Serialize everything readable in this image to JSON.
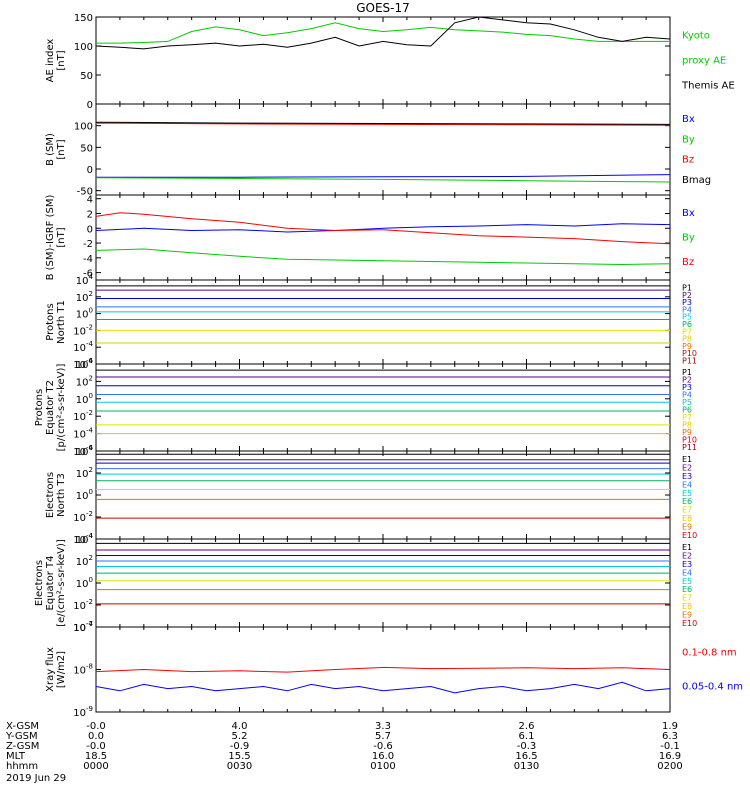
{
  "chart_data": {
    "type": "line",
    "title": "GOES-17",
    "date_label": "2019 Jun 29",
    "x_range_minutes": [
      0,
      120
    ],
    "x_tick_minutes": [
      0,
      30,
      60,
      90,
      120
    ],
    "ephemeris": [
      {
        "label": "X-GSM",
        "values": [
          "-0.0",
          "4.0",
          "3.3",
          "2.6",
          "1.9"
        ]
      },
      {
        "label": "Y-GSM",
        "values": [
          "0.0",
          "5.2",
          "5.7",
          "6.1",
          "6.3"
        ]
      },
      {
        "label": "Z-GSM",
        "values": [
          "-0.0",
          "-0.9",
          "-0.6",
          "-0.3",
          "-0.1"
        ]
      },
      {
        "label": "MLT",
        "values": [
          "18.5",
          "15.5",
          "16.0",
          "16.5",
          "16.9"
        ]
      },
      {
        "label": "hhmm",
        "values": [
          "0000",
          "0030",
          "0100",
          "0130",
          "0200"
        ]
      }
    ],
    "panels": [
      {
        "id": "ae",
        "ylabel": [
          "AE index",
          "[nT]"
        ],
        "scale": "linear",
        "ylim": [
          0,
          150
        ],
        "yticks": [
          "0",
          "50",
          "100",
          "150"
        ],
        "legend": [
          {
            "text": "Kyoto",
            "color": "#00cc00"
          },
          {
            "text": "proxy AE",
            "color": "#00cc00"
          },
          {
            "text": "Themis AE",
            "color": "#000000"
          }
        ],
        "series": [
          {
            "name": "Kyoto proxy AE",
            "color": "#00cc00",
            "x": [
              0,
              5,
              10,
              15,
              20,
              25,
              30,
              35,
              40,
              45,
              50,
              55,
              60,
              65,
              70,
              75,
              80,
              85,
              90,
              95,
              100,
              105,
              110,
              115,
              120
            ],
            "y": [
              105,
              105,
              106,
              108,
              125,
              133,
              128,
              118,
              123,
              130,
              140,
              130,
              125,
              128,
              132,
              128,
              126,
              124,
              120,
              118,
              112,
              108,
              108,
              108,
              108
            ]
          },
          {
            "name": "Themis AE",
            "color": "#000000",
            "x": [
              0,
              5,
              10,
              15,
              20,
              25,
              30,
              35,
              40,
              45,
              50,
              55,
              60,
              65,
              70,
              75,
              80,
              85,
              90,
              95,
              100,
              105,
              110,
              115,
              120
            ],
            "y": [
              100,
              98,
              95,
              100,
              102,
              105,
              100,
              103,
              98,
              105,
              115,
              100,
              108,
              102,
              100,
              140,
              150,
              145,
              140,
              138,
              128,
              115,
              108,
              115,
              112
            ]
          }
        ]
      },
      {
        "id": "bsm",
        "ylabel": [
          "B (SM)",
          "[nT]"
        ],
        "scale": "linear",
        "ylim": [
          -60,
          150
        ],
        "yticks": [
          "-50",
          "0",
          "50",
          "100"
        ],
        "legend": [
          {
            "text": "Bx",
            "color": "#0000ff"
          },
          {
            "text": "By",
            "color": "#00cc00"
          },
          {
            "text": "Bz",
            "color": "#ff0000"
          },
          {
            "text": "Bmag",
            "color": "#000000"
          }
        ],
        "series": [
          {
            "name": "Bx",
            "color": "#0000ff",
            "x": [
              0,
              30,
              60,
              90,
              120
            ],
            "y": [
              -19,
              -19,
              -18,
              -17,
              -13
            ]
          },
          {
            "name": "By",
            "color": "#00cc00",
            "x": [
              0,
              30,
              60,
              90,
              120
            ],
            "y": [
              -20,
              -22,
              -24,
              -27,
              -30
            ]
          },
          {
            "name": "Bz",
            "color": "#ff0000",
            "x": [
              0,
              30,
              60,
              90,
              120
            ],
            "y": [
              106,
              104,
              103,
              102,
              101
            ]
          },
          {
            "name": "Bmag",
            "color": "#000000",
            "x": [
              0,
              30,
              60,
              90,
              120
            ],
            "y": [
              108,
              106,
              105,
              104,
              103
            ]
          }
        ]
      },
      {
        "id": "bsm-igrf",
        "ylabel": [
          "B (SM)-IGRF (SM)",
          "[nT]"
        ],
        "scale": "linear",
        "ylim": [
          -7,
          4.5
        ],
        "yticks": [
          "-6",
          "-4",
          "-2",
          "0",
          "2",
          "4"
        ],
        "legend": [
          {
            "text": "Bx",
            "color": "#0000ff"
          },
          {
            "text": "By",
            "color": "#00cc00"
          },
          {
            "text": "Bz",
            "color": "#ff0000"
          }
        ],
        "series": [
          {
            "name": "Bx",
            "color": "#0000ff",
            "x": [
              0,
              10,
              20,
              30,
              40,
              50,
              60,
              70,
              80,
              90,
              100,
              110,
              120
            ],
            "y": [
              -0.3,
              0,
              -0.3,
              -0.2,
              -0.5,
              -0.3,
              0,
              0.2,
              0.3,
              0.5,
              0.3,
              0.6,
              0.5
            ]
          },
          {
            "name": "By",
            "color": "#00cc00",
            "x": [
              0,
              10,
              20,
              30,
              40,
              50,
              60,
              70,
              80,
              90,
              100,
              110,
              120
            ],
            "y": [
              -3.0,
              -2.8,
              -3.3,
              -3.8,
              -4.2,
              -4.3,
              -4.4,
              -4.5,
              -4.6,
              -4.7,
              -4.8,
              -4.9,
              -4.8
            ]
          },
          {
            "name": "Bz",
            "color": "#ff0000",
            "x": [
              0,
              5,
              10,
              20,
              30,
              40,
              50,
              60,
              70,
              80,
              90,
              100,
              110,
              120
            ],
            "y": [
              1.6,
              2.1,
              1.9,
              1.3,
              0.8,
              0.0,
              -0.3,
              -0.2,
              -0.6,
              -1.0,
              -1.2,
              -1.4,
              -1.8,
              -2.1
            ]
          }
        ]
      },
      {
        "id": "protons-t1",
        "ylabel": [
          "Protons",
          "North T1"
        ],
        "scale": "log",
        "ylim": [
          -6,
          4
        ],
        "yticks": [
          "10^4",
          "10^2",
          "10^0",
          "10^-2",
          "10^-4",
          "10^-6"
        ],
        "legend": [
          {
            "text": "P1",
            "color": "#000000"
          },
          {
            "text": "P2",
            "color": "#5a0080"
          },
          {
            "text": "P3",
            "color": "#0000cc"
          },
          {
            "text": "P4",
            "color": "#3070ff"
          },
          {
            "text": "P5",
            "color": "#00c8e0"
          },
          {
            "text": "P6",
            "color": "#00b060"
          },
          {
            "text": "P7",
            "color": "#e0e000"
          },
          {
            "text": "P8",
            "color": "#e8c800"
          },
          {
            "text": "P9",
            "color": "#e07000"
          },
          {
            "text": "P10",
            "color": "#cc0000"
          },
          {
            "text": "P11",
            "color": "#990000"
          }
        ],
        "levels": [
          {
            "name": "P1",
            "color": "#000000",
            "value": 3.3
          },
          {
            "name": "P2",
            "color": "#5a0080",
            "value": 2.8
          },
          {
            "name": "P3",
            "color": "#0000cc",
            "value": 1.8
          },
          {
            "name": "P4",
            "color": "#3070ff",
            "value": 0.8
          },
          {
            "name": "P5",
            "color": "#00c8e0",
            "value": 0.2
          },
          {
            "name": "P6",
            "color": "#00b060",
            "value": -0.7
          },
          {
            "name": "P7",
            "color": "#e0e000",
            "value": -2.0
          },
          {
            "name": "P8",
            "color": "#e8c800",
            "value": -3.5
          }
        ]
      },
      {
        "id": "protons-t2",
        "ylabel": [
          "Protons",
          "Equator T2",
          "[p/(cm²-s-sr-keV)]"
        ],
        "scale": "log",
        "ylim": [
          -6,
          4
        ],
        "yticks": [
          "10^4",
          "10^2",
          "10^0",
          "10^-2",
          "10^-4",
          "10^-6"
        ],
        "legend": [
          {
            "text": "P1",
            "color": "#000000"
          },
          {
            "text": "P2",
            "color": "#5a0080"
          },
          {
            "text": "P3",
            "color": "#0000cc"
          },
          {
            "text": "P4",
            "color": "#3070ff"
          },
          {
            "text": "P5",
            "color": "#00c8e0"
          },
          {
            "text": "P6",
            "color": "#00b060"
          },
          {
            "text": "P7",
            "color": "#e0e000"
          },
          {
            "text": "P8",
            "color": "#e8c800"
          },
          {
            "text": "P9",
            "color": "#e07000"
          },
          {
            "text": "P10",
            "color": "#cc0000"
          },
          {
            "text": "P11",
            "color": "#990000"
          }
        ],
        "levels": [
          {
            "name": "P1",
            "color": "#000000",
            "value": 3.3
          },
          {
            "name": "P2",
            "color": "#5a0080",
            "value": 2.5
          },
          {
            "name": "P3",
            "color": "#0000cc",
            "value": 1.5
          },
          {
            "name": "P4",
            "color": "#3070ff",
            "value": 0.5
          },
          {
            "name": "P5",
            "color": "#00c8e0",
            "value": -0.4
          },
          {
            "name": "P6",
            "color": "#00b060",
            "value": -1.4
          },
          {
            "name": "P7",
            "color": "#e0e000",
            "value": -3.0
          },
          {
            "name": "P8",
            "color": "#e8c800",
            "value": -4.0
          }
        ]
      },
      {
        "id": "electrons-t3",
        "ylabel": [
          "Electrons",
          "North T3"
        ],
        "scale": "log",
        "ylim": [
          -4,
          4
        ],
        "yticks": [
          "10^4",
          "10^2",
          "10^0",
          "10^-2",
          "10^-4"
        ],
        "legend": [
          {
            "text": "E1",
            "color": "#000000"
          },
          {
            "text": "E2",
            "color": "#5a0080"
          },
          {
            "text": "E3",
            "color": "#0000cc"
          },
          {
            "text": "E4",
            "color": "#3070ff"
          },
          {
            "text": "E5",
            "color": "#00c8e0"
          },
          {
            "text": "E6",
            "color": "#00b060"
          },
          {
            "text": "E7",
            "color": "#e0e000"
          },
          {
            "text": "E8",
            "color": "#e8c800"
          },
          {
            "text": "E9",
            "color": "#e07000"
          },
          {
            "text": "E10",
            "color": "#cc0000"
          }
        ],
        "levels": [
          {
            "name": "E1",
            "color": "#000000",
            "value": 3.7
          },
          {
            "name": "E2",
            "color": "#5a0080",
            "value": 3.2
          },
          {
            "name": "E3",
            "color": "#0000cc",
            "value": 2.9
          },
          {
            "name": "E4",
            "color": "#3070ff",
            "value": 2.4
          },
          {
            "name": "E5",
            "color": "#00c8e0",
            "value": 1.9
          },
          {
            "name": "E6",
            "color": "#00b060",
            "value": 1.3
          },
          {
            "name": "E7",
            "color": "#e0e000",
            "value": 0.5
          },
          {
            "name": "E8",
            "color": "#e07000",
            "value": -0.4
          },
          {
            "name": "E9",
            "color": "#cc0000",
            "value": -2.1
          }
        ]
      },
      {
        "id": "electrons-t4",
        "ylabel": [
          "Electrons",
          "Equator T4",
          "[e/(cm²-s-sr-keV)]"
        ],
        "scale": "log",
        "ylim": [
          -4,
          4
        ],
        "yticks": [
          "10^4",
          "10^2",
          "10^0",
          "10^-2",
          "10^-4"
        ],
        "legend": [
          {
            "text": "E1",
            "color": "#000000"
          },
          {
            "text": "E2",
            "color": "#5a0080"
          },
          {
            "text": "E3",
            "color": "#0000cc"
          },
          {
            "text": "E4",
            "color": "#3070ff"
          },
          {
            "text": "E5",
            "color": "#00c8e0"
          },
          {
            "text": "E6",
            "color": "#00b060"
          },
          {
            "text": "E7",
            "color": "#e0e000"
          },
          {
            "text": "E8",
            "color": "#e8c800"
          },
          {
            "text": "E9",
            "color": "#e07000"
          },
          {
            "text": "E10",
            "color": "#cc0000"
          }
        ],
        "levels": [
          {
            "name": "E1",
            "color": "#000000",
            "value": 3.6
          },
          {
            "name": "E2",
            "color": "#5a0080",
            "value": 3.0
          },
          {
            "name": "E3",
            "color": "#0000cc",
            "value": 2.5
          },
          {
            "name": "E4",
            "color": "#3070ff",
            "value": 2.0
          },
          {
            "name": "E5",
            "color": "#00c8e0",
            "value": 1.5
          },
          {
            "name": "E6",
            "color": "#00b060",
            "value": 0.9
          },
          {
            "name": "E7",
            "color": "#e0e000",
            "value": 0.2
          },
          {
            "name": "E8",
            "color": "#e07000",
            "value": -0.6
          },
          {
            "name": "E9",
            "color": "#cc0000",
            "value": -1.9
          }
        ]
      },
      {
        "id": "xray",
        "ylabel": [
          "Xray flux",
          "[W/m2]"
        ],
        "scale": "log",
        "ylim": [
          -9,
          -7
        ],
        "yticks": [
          "10^-7",
          "10^-8",
          "10^-9"
        ],
        "legend": [
          {
            "text": "0.1-0.8 nm",
            "color": "#ff0000"
          },
          {
            "text": "0.05-0.4 nm",
            "color": "#0000ff"
          }
        ],
        "series": [
          {
            "name": "0.1-0.8 nm",
            "color": "#ff0000",
            "x": [
              0,
              10,
              20,
              30,
              40,
              50,
              60,
              70,
              80,
              90,
              100,
              110,
              120
            ],
            "y": [
              -8.05,
              -8.0,
              -8.05,
              -8.03,
              -8.06,
              -8.0,
              -7.95,
              -7.98,
              -7.97,
              -7.96,
              -7.98,
              -7.96,
              -8.0
            ]
          },
          {
            "name": "0.05-0.4 nm",
            "color": "#0000ff",
            "x": [
              0,
              5,
              10,
              15,
              20,
              25,
              30,
              35,
              40,
              45,
              50,
              55,
              60,
              65,
              70,
              75,
              80,
              85,
              90,
              95,
              100,
              105,
              110,
              115,
              120
            ],
            "y": [
              -8.4,
              -8.5,
              -8.35,
              -8.45,
              -8.4,
              -8.5,
              -8.45,
              -8.4,
              -8.5,
              -8.35,
              -8.45,
              -8.4,
              -8.5,
              -8.45,
              -8.4,
              -8.55,
              -8.45,
              -8.4,
              -8.5,
              -8.45,
              -8.35,
              -8.45,
              -8.3,
              -8.5,
              -8.45
            ]
          }
        ]
      }
    ]
  }
}
